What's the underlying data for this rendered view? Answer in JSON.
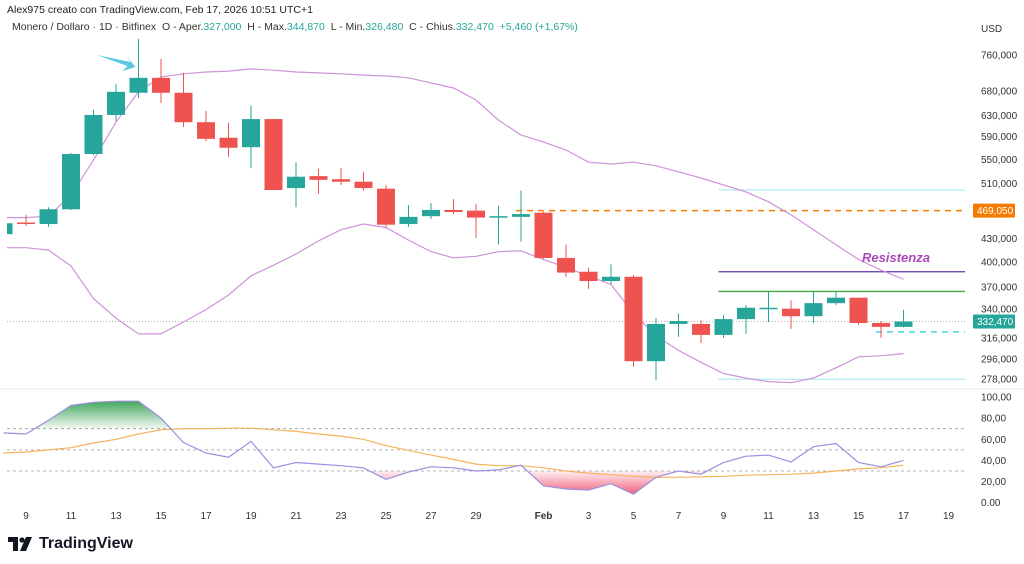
{
  "header": {
    "credit": "Alex975 creato con TradingView.com, Feb 17, 2026 10:51 UTC+1",
    "symbol": "Monero / Dollaro · 1D · Bitfinex",
    "open_label": "O - Aper.",
    "open": "327,000",
    "high_label": "H - Max.",
    "high": "344,870",
    "low_label": "L - Min.",
    "low": "326,480",
    "close_label": "C - Chius.",
    "close": "332,470",
    "change": "+5,460 (+1,67%)"
  },
  "footer": {
    "logo_text": "TradingView"
  },
  "colors": {
    "up": "#26a69a",
    "down": "#ef5350",
    "bands": "#ce93d8",
    "rsi": "#9c8ee0",
    "rsi_ma": "#f7b35b",
    "level_orange": "#f57c00",
    "resistance": "#5e35b1",
    "support_green": "#43a047",
    "cyan": "#4dd0e1",
    "annotation_text": "#ab47bc",
    "arrow": "#5bc8e0"
  },
  "chart_data": [
    {
      "type": "candlestick",
      "currency": "USD",
      "scale": "log",
      "ylim": [
        270,
        800
      ],
      "ticks": [
        {
          "v": 760,
          "label": "760,000"
        },
        {
          "v": 680,
          "label": "680,000"
        },
        {
          "v": 630,
          "label": "630,000"
        },
        {
          "v": 590,
          "label": "590,000"
        },
        {
          "v": 550,
          "label": "550,000"
        },
        {
          "v": 510,
          "label": "510,000"
        },
        {
          "v": 430,
          "label": "430,000"
        },
        {
          "v": 400,
          "label": "400,000"
        },
        {
          "v": 370,
          "label": "370,000"
        },
        {
          "v": 340,
          "label": "340,000"
        },
        {
          "v": 316,
          "label": "316,000"
        },
        {
          "v": 296,
          "label": "296,000"
        },
        {
          "v": 278,
          "label": "278,000"
        }
      ],
      "badges": [
        {
          "v": 469.05,
          "label": "469,050",
          "color": "#f57c00"
        },
        {
          "v": 332.47,
          "label": "332,470",
          "color": "#26a69a"
        }
      ],
      "candles": [
        [
          "Jan 8",
          436,
          453,
          434,
          451
        ],
        [
          "Jan 9",
          452,
          463,
          447,
          450
        ],
        [
          "Jan 10",
          450,
          474,
          446,
          471
        ],
        [
          "Jan 11",
          471,
          561,
          470,
          559
        ],
        [
          "Jan 12",
          559,
          641,
          557,
          631
        ],
        [
          "Jan 13",
          631,
          695,
          619,
          678
        ],
        [
          "Jan 14",
          676,
          799,
          665,
          708
        ],
        [
          "Jan 15",
          708,
          751,
          655,
          676
        ],
        [
          "Jan 16",
          676,
          719,
          608,
          617
        ],
        [
          "Jan 17",
          617,
          639,
          582,
          586
        ],
        [
          "Jan 18",
          588,
          616,
          554,
          570
        ],
        [
          "Jan 19",
          571,
          649,
          535,
          623
        ],
        [
          "Jan 20",
          623,
          623,
          500,
          500
        ],
        [
          "Jan 21",
          503,
          545,
          474,
          521
        ],
        [
          "Jan 22",
          522,
          534,
          494,
          516
        ],
        [
          "Jan 23",
          517,
          535,
          508,
          513
        ],
        [
          "Jan 24",
          513,
          529,
          499,
          503
        ],
        [
          "Jan 25",
          502,
          508,
          445,
          449
        ],
        [
          "Jan 26",
          450,
          477,
          446,
          460
        ],
        [
          "Jan 27",
          461,
          480,
          457,
          470
        ],
        [
          "Jan 28",
          470,
          486,
          464,
          467
        ],
        [
          "Jan 29",
          469,
          479,
          431,
          459
        ],
        [
          "Jan 30",
          461,
          476,
          422,
          461
        ],
        [
          "Jan 31",
          460,
          499,
          426,
          464
        ],
        [
          "Feb 1",
          466,
          467,
          403,
          405
        ],
        [
          "Feb 2",
          405,
          422,
          382,
          387
        ],
        [
          "Feb 3",
          388,
          393,
          368,
          377
        ],
        [
          "Feb 4",
          377,
          397,
          373,
          382
        ],
        [
          "Feb 5",
          382,
          384,
          289,
          294
        ],
        [
          "Feb 6",
          294,
          336,
          277,
          330
        ],
        [
          "Feb 7",
          330,
          341,
          317,
          333
        ],
        [
          "Feb 8",
          330,
          334,
          311,
          319
        ],
        [
          "Feb 9",
          319,
          339,
          316,
          335
        ],
        [
          "Feb 10",
          335,
          350,
          320,
          347
        ],
        [
          "Feb 11",
          346,
          365,
          332,
          347
        ],
        [
          "Feb 12",
          346,
          355,
          325,
          338
        ],
        [
          "Feb 13",
          338,
          365,
          331,
          352
        ],
        [
          "Feb 14",
          352,
          365,
          350,
          358
        ],
        [
          "Feb 15",
          358,
          358,
          329,
          331
        ],
        [
          "Feb 16",
          331,
          333,
          316,
          327
        ],
        [
          "Feb 17",
          327,
          344.87,
          326.48,
          332.47
        ]
      ],
      "upper_band": [
        459,
        459,
        461,
        492,
        549,
        617,
        678,
        710,
        717,
        721,
        723,
        728,
        725,
        721,
        719,
        717,
        714,
        712,
        708,
        697,
        686,
        661,
        621,
        593,
        580,
        566,
        545,
        542,
        545,
        539,
        529,
        519,
        508,
        497,
        482,
        463,
        442,
        422,
        403,
        390,
        379
      ],
      "lower_band": [
        418,
        418,
        415,
        395,
        357,
        336,
        320,
        320,
        332,
        345,
        361,
        383,
        396,
        410,
        427,
        442,
        450,
        445,
        428,
        413,
        405,
        407,
        413,
        414,
        403,
        393,
        383,
        373,
        341,
        318,
        304,
        293,
        283,
        279,
        276,
        275,
        279,
        288,
        298,
        299,
        301
      ],
      "levels": [
        {
          "v": 500,
          "from": "Feb 9",
          "style": "solid",
          "color": "#b2ebf2"
        },
        {
          "v": 469.05,
          "from": "Jan 31",
          "style": "dashed",
          "color": "#f57c00"
        },
        {
          "v": 388,
          "from": "Feb 9",
          "style": "solid",
          "color": "#5e35b1"
        },
        {
          "v": 365,
          "from": "Feb 9",
          "style": "solid",
          "color": "#43a047"
        },
        {
          "v": 322,
          "from": "Feb 16",
          "style": "dashed",
          "color": "#4dd0e1"
        },
        {
          "v": 278,
          "from": "Feb 9",
          "style": "solid",
          "color": "#b2ebf2"
        }
      ],
      "annotation": {
        "text": "Resistenza",
        "v": 400,
        "at": "Feb 14"
      },
      "arrow_at": "Jan 14"
    },
    {
      "type": "line",
      "ylim": [
        0,
        100
      ],
      "ticks": [
        {
          "v": 100,
          "label": "100,00"
        },
        {
          "v": 80,
          "label": "80,00"
        },
        {
          "v": 60,
          "label": "60,00"
        },
        {
          "v": 40,
          "label": "40,00"
        },
        {
          "v": 20,
          "label": "20,00"
        },
        {
          "v": 0,
          "label": "0.00"
        }
      ],
      "bands": [
        70,
        50,
        30
      ],
      "rsi": [
        66,
        65,
        78,
        92,
        95,
        96,
        96,
        80,
        57,
        47,
        43,
        58,
        33,
        38,
        36.5,
        35,
        33,
        22,
        29,
        34,
        33,
        30,
        31,
        35.5,
        16,
        13,
        12,
        18,
        8,
        24,
        30,
        27,
        38,
        44,
        45,
        38.5,
        53,
        56,
        38,
        34,
        40
      ],
      "rsi_ma": [
        47,
        48,
        50,
        52,
        56.5,
        60,
        65,
        69,
        70,
        70,
        70.5,
        70.5,
        69,
        67.5,
        65,
        63,
        60,
        54,
        49.5,
        45,
        41,
        36.5,
        35,
        35,
        33,
        30,
        28,
        26.5,
        25,
        24,
        24,
        24.5,
        25,
        26,
        26.5,
        27,
        28,
        30,
        32,
        33,
        35.5
      ]
    }
  ],
  "time_axis": [
    {
      "date": "Jan 9",
      "label": "9"
    },
    {
      "date": "Jan 11",
      "label": "11"
    },
    {
      "date": "Jan 13",
      "label": "13"
    },
    {
      "date": "Jan 15",
      "label": "15"
    },
    {
      "date": "Jan 17",
      "label": "17"
    },
    {
      "date": "Jan 19",
      "label": "19"
    },
    {
      "date": "Jan 21",
      "label": "21"
    },
    {
      "date": "Jan 23",
      "label": "23"
    },
    {
      "date": "Jan 25",
      "label": "25"
    },
    {
      "date": "Jan 27",
      "label": "27"
    },
    {
      "date": "Jan 29",
      "label": "29"
    },
    {
      "date": "Feb 1",
      "label": "Feb",
      "bold": true
    },
    {
      "date": "Feb 3",
      "label": "3"
    },
    {
      "date": "Feb 5",
      "label": "5"
    },
    {
      "date": "Feb 7",
      "label": "7"
    },
    {
      "date": "Feb 9",
      "label": "9"
    },
    {
      "date": "Feb 11",
      "label": "11"
    },
    {
      "date": "Feb 13",
      "label": "13"
    },
    {
      "date": "Feb 15",
      "label": "15"
    },
    {
      "date": "Feb 17",
      "label": "17"
    },
    {
      "date": "Feb 19",
      "label": "19"
    }
  ]
}
